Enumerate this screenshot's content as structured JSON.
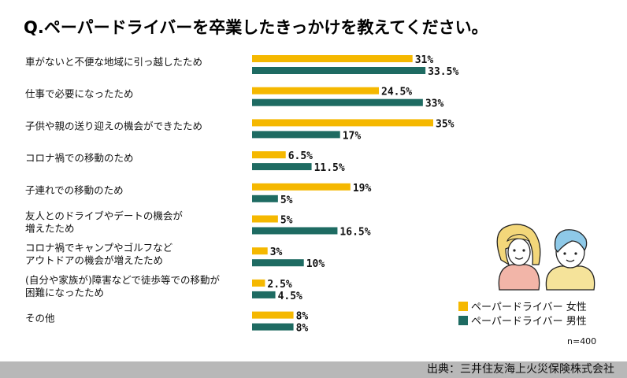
{
  "chart_data": {
    "type": "bar",
    "orientation": "horizontal",
    "title": "Q.ペーパードライバーを卒業したきっかけを教えてください。",
    "categories": [
      [
        "車がないと不便な地域に引っ越したため"
      ],
      [
        "仕事で必要になったため"
      ],
      [
        "子供や親の送り迎えの機会ができたため"
      ],
      [
        "コロナ禍での移動のため"
      ],
      [
        "子連れでの移動のため"
      ],
      [
        "友人とのドライブやデートの機会が",
        "増えたため"
      ],
      [
        "コロナ禍でキャンプやゴルフなど",
        "アウトドアの機会が増えたため"
      ],
      [
        "(自分や家族が)障害などで徒歩等での移動が",
        "困難になったため"
      ],
      [
        "その他"
      ]
    ],
    "series": [
      {
        "name": "ペーパードライバー 女性",
        "color": "#f5b800",
        "values": [
          31,
          24.5,
          35,
          6.5,
          19,
          5,
          3,
          2.5,
          8
        ],
        "labels": [
          "31%",
          "24.5%",
          "35%",
          "6.5%",
          "19%",
          "5%",
          "3%",
          "2.5%",
          "8%"
        ]
      },
      {
        "name": "ペーパードライバー 男性",
        "color": "#1e6b62",
        "values": [
          33.5,
          33,
          17,
          11.5,
          5,
          16.5,
          10,
          4.5,
          8
        ],
        "labels": [
          "33.5%",
          "33%",
          "17%",
          "11.5%",
          "5%",
          "16.5%",
          "10%",
          "4.5%",
          "8%"
        ]
      }
    ],
    "xlim": [
      0,
      35
    ],
    "grid": false,
    "legend": "bottom-right",
    "annotations": {
      "n": "n=400"
    }
  },
  "footer": {
    "source": "出典：三井住友海上火災保険株式会社"
  }
}
